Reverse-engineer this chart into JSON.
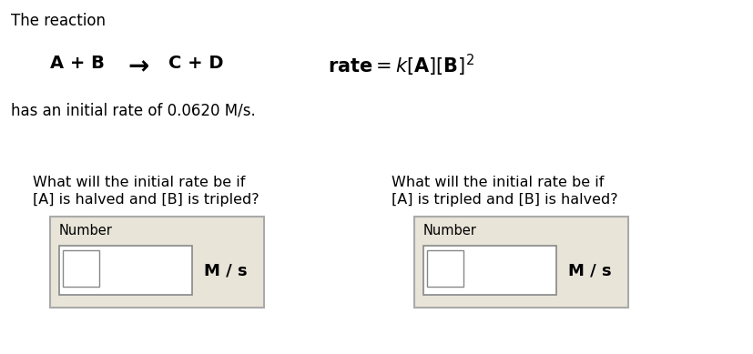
{
  "bg_color": "#ffffff",
  "text_color": "#000000",
  "line1": "The reaction",
  "reaction_left": "A + B",
  "reaction_arrow": "→",
  "reaction_right": "C + D",
  "initial_rate_text": "has an initial rate of 0.0620 M/s.",
  "q1_line1": "What will the initial rate be if",
  "q1_line2": "[A] is halved and [B] is tripled?",
  "q2_line1": "What will the initial rate be if",
  "q2_line2": "[A] is tripled and [B] is halved?",
  "box_label": "Number",
  "units": "M / s",
  "box_bg": "#e8e4d8",
  "box_border": "#aaaaaa",
  "input_bg": "#ffffff",
  "input_border": "#888888"
}
